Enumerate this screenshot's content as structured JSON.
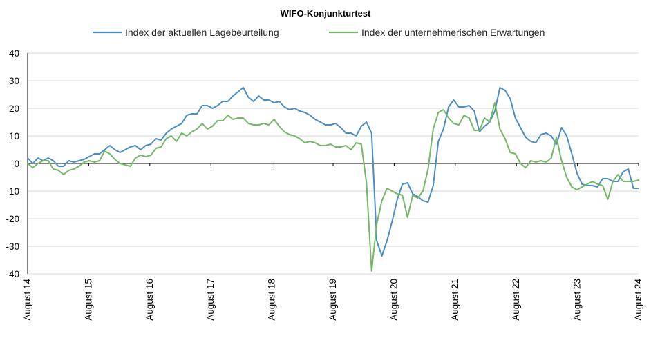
{
  "chart_data": {
    "type": "line",
    "title": "WIFO-Konjunkturtest",
    "xlabel": "",
    "ylabel": "",
    "ylim": [
      -40,
      40
    ],
    "yticks": [
      40,
      30,
      20,
      10,
      0,
      -10,
      -20,
      -30,
      -40
    ],
    "grid": "horizontal",
    "legend_position": "top",
    "x_tick_labels": [
      "August 14",
      "August 15",
      "August 16",
      "August 17",
      "August 18",
      "August 19",
      "August 20",
      "August 21",
      "August 22",
      "August 23",
      "August 24"
    ],
    "x_start": "2014-08",
    "x_end": "2024-08",
    "series": [
      {
        "name": "Index der aktuellen Lagebeurteilung",
        "color": "#4a8cc4",
        "values": [
          2,
          0,
          2,
          1,
          2,
          1,
          -1,
          -1,
          1,
          0.5,
          1,
          1.5,
          2.5,
          3.5,
          3.5,
          5,
          6.5,
          5,
          4,
          5,
          6,
          6.5,
          5,
          6.5,
          7,
          9,
          8.5,
          11,
          12.5,
          13.5,
          14.5,
          17.5,
          18,
          18,
          21,
          21,
          20,
          21,
          22.5,
          22.5,
          24.5,
          26,
          27.5,
          24,
          22.5,
          24.5,
          23,
          23,
          22,
          22.5,
          20.5,
          19.5,
          20,
          19,
          18.5,
          17.5,
          16,
          15,
          14,
          14,
          14.5,
          13,
          11,
          11,
          10,
          13.5,
          15,
          11,
          -28,
          -33.5,
          -28,
          -21,
          -13,
          -7.5,
          -7,
          -11,
          -12,
          -13.5,
          -14,
          -8,
          8,
          12.5,
          20.5,
          23,
          20.5,
          20.5,
          21,
          19,
          11.5,
          13.5,
          15,
          19,
          27.5,
          26.5,
          23.5,
          16.5,
          13,
          9.5,
          8,
          7.5,
          10.5,
          11,
          10,
          7,
          13,
          10,
          3.5,
          -3.5,
          -7.5,
          -8,
          -8,
          -8.5,
          -5.5,
          -5.5,
          -6.5,
          -6.5,
          -3,
          -2,
          -9,
          -9
        ]
      },
      {
        "name": "Index der unternehmerischen Erwartungen",
        "color": "#73b865",
        "values": [
          0,
          -1.5,
          0,
          1,
          1,
          -2,
          -2.5,
          -4,
          -2.5,
          -2,
          -1,
          0.5,
          1,
          0.5,
          1,
          4.5,
          3.5,
          1.5,
          0,
          -0.5,
          -1,
          2,
          3,
          2.5,
          3,
          5.5,
          6,
          9,
          10,
          8,
          11,
          10,
          11.5,
          12.5,
          14.5,
          12.5,
          13.5,
          15.5,
          15.5,
          17.5,
          16,
          16.5,
          16.5,
          14.5,
          14,
          14,
          14.5,
          14,
          16,
          13.5,
          11.5,
          10.5,
          10,
          9,
          7.5,
          8,
          7.5,
          6.5,
          6.5,
          7,
          6,
          6,
          6.5,
          5,
          7.5,
          7,
          -7,
          -39,
          -22,
          -13.5,
          -9,
          -10,
          -11,
          -11.5,
          -19.5,
          -11.5,
          -12.5,
          -10,
          -2,
          12.5,
          18.5,
          19.5,
          16.5,
          14.5,
          14,
          17.5,
          16.5,
          12,
          12,
          16.5,
          15,
          22,
          12.5,
          9,
          4,
          3.5,
          0,
          -1.5,
          1,
          0.5,
          1,
          0.5,
          2,
          9.5,
          1,
          -5,
          -8.5,
          -9.5,
          -8.5,
          -7.5,
          -6.5,
          -7.5,
          -8,
          -13,
          -6.5,
          -4,
          -6.5,
          -6.5,
          -6.5,
          -6
        ]
      }
    ]
  }
}
